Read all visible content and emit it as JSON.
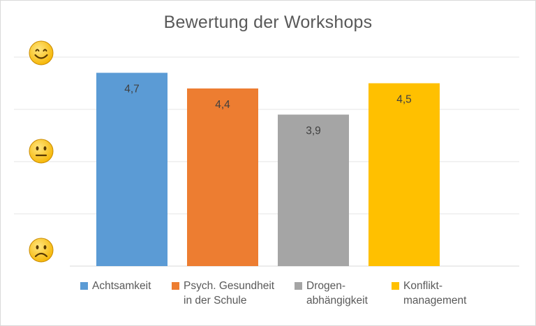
{
  "chart_data": {
    "type": "bar",
    "title": "Bewertung der Workshops",
    "categories": [
      "Achtsamkeit",
      "Psych. Gesundheit\nin der Schule",
      "Drogen-\nabhängigkeit",
      "Konflikt-\nmanagement"
    ],
    "values": [
      4.7,
      4.4,
      3.9,
      4.5
    ],
    "value_labels": [
      "4,7",
      "4,4",
      "3,9",
      "4,5"
    ],
    "colors": [
      "#5b9bd5",
      "#ed7d31",
      "#a5a5a5",
      "#ffc000"
    ],
    "ylim": [
      1,
      5
    ],
    "grid": true,
    "legend_position": "bottom",
    "y_axis_icons": [
      {
        "value": 5,
        "icon": "smiling-face-icon"
      },
      {
        "value": 3,
        "icon": "neutral-face-icon"
      },
      {
        "value": 1,
        "icon": "frowning-face-icon"
      }
    ]
  }
}
